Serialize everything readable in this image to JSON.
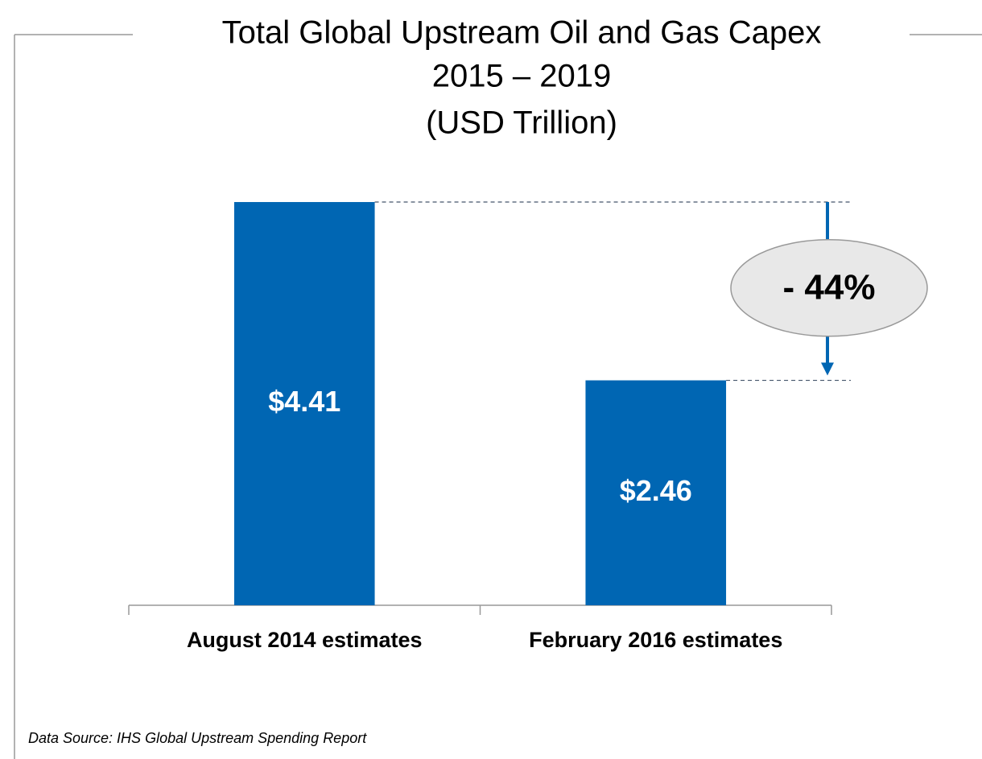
{
  "chart_data": {
    "type": "bar",
    "title": [
      "Total Global Upstream Oil and Gas Capex",
      "2015 – 2019",
      "(USD Trillion)"
    ],
    "categories": [
      "August 2014 estimates",
      "February 2016 estimates"
    ],
    "values": [
      4.41,
      2.46
    ],
    "value_labels": [
      "$4.41",
      "$2.46"
    ],
    "color": "#0066b3",
    "ylim": [
      0,
      5
    ],
    "annotation": "- 44%",
    "source": "Data Source: IHS Global Upstream Spending Report"
  }
}
